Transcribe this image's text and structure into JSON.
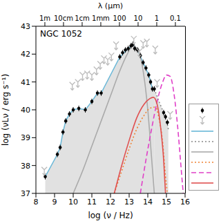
{
  "chart_data": {
    "type": "scatter",
    "title": "NGC 1052",
    "xlabel": "log (ν / Hz)",
    "ylabel": "log (νLν / erg s⁻¹)",
    "x2label": "λ (μm)",
    "xlim": [
      8,
      16
    ],
    "xticks": [
      8,
      9,
      10,
      11,
      12,
      13,
      14,
      15,
      16
    ],
    "ylim": [
      37,
      43
    ],
    "yticks": [
      37,
      38,
      39,
      40,
      41,
      42,
      43
    ],
    "x2lim": [
      8,
      16
    ],
    "x2ticks": [
      {
        "value": 8.48,
        "label": "1m"
      },
      {
        "value": 9.48,
        "label": "10cm"
      },
      {
        "value": 10.48,
        "label": "1cm"
      },
      {
        "value": 11.48,
        "label": "1mm"
      },
      {
        "value": 12.48,
        "label": "100"
      },
      {
        "value": 13.48,
        "label": "10"
      },
      {
        "value": 14.48,
        "label": "1"
      },
      {
        "value": 15.48,
        "label": "0.1"
      }
    ],
    "grid": false,
    "log": false,
    "legend": "right",
    "series": [
      {
        "type": "scatter",
        "color": "#000000",
        "marker": "circle",
        "x": [
          8.5,
          9.15,
          9.3,
          9.45,
          9.6,
          9.8,
          10.0,
          10.3,
          10.65,
          11.0,
          11.3,
          11.5,
          12.5,
          12.65,
          12.8,
          12.95,
          13.1,
          13.2,
          13.3,
          13.45,
          13.6,
          13.75,
          13.9,
          14.05,
          14.15,
          14.25,
          14.35,
          14.85,
          14.95,
          15.05
        ],
        "values": [
          37.6,
          38.4,
          38.65,
          39.2,
          39.6,
          39.85,
          40.0,
          40.05,
          40.0,
          40.3,
          40.6,
          40.6,
          41.9,
          42.05,
          42.15,
          42.2,
          42.3,
          42.35,
          42.2,
          42.15,
          41.95,
          41.7,
          41.5,
          41.25,
          41.0,
          40.75,
          40.75,
          39.9,
          39.75,
          39.55
        ]
      },
      {
        "type": "scatter",
        "color": "#bbbbbb",
        "marker": "down_arrow",
        "x": [
          8.45,
          9.95,
          10.25,
          10.5,
          10.75,
          11.0,
          11.25,
          11.45,
          11.65,
          11.85,
          12.05,
          12.3,
          13.25,
          13.55,
          13.75,
          13.95,
          14.4,
          14.5,
          15.2
        ],
        "values": [
          37.85,
          40.9,
          41.0,
          41.25,
          41.3,
          41.25,
          41.45,
          41.65,
          41.85,
          41.8,
          41.95,
          42.35,
          42.55,
          42.1,
          42.4,
          42.45,
          42.2,
          41.0,
          39.85
        ]
      },
      {
        "type": "area",
        "color": "#6ab8d8",
        "line_style": "solid",
        "x": [
          8.5,
          9.15,
          9.3,
          9.45,
          9.6,
          9.8,
          10.0,
          10.3,
          10.65,
          11.0,
          11.3,
          11.5,
          12.5,
          12.95,
          13.2,
          13.45,
          13.75,
          14.05,
          14.25,
          14.35
        ],
        "values": [
          37.6,
          38.4,
          38.65,
          39.2,
          39.6,
          39.85,
          40.0,
          40.05,
          40.0,
          40.3,
          40.6,
          40.6,
          41.9,
          42.2,
          42.35,
          42.15,
          41.7,
          41.25,
          40.75,
          40.75
        ]
      },
      {
        "type": "area",
        "color": "#888888",
        "line_style": "dotted",
        "x": [
          14.35,
          14.6,
          14.85,
          15.05,
          15.1
        ],
        "values": [
          40.75,
          40.3,
          39.9,
          39.5,
          39.3
        ]
      },
      {
        "type": "line",
        "color": "#aaaaaa",
        "line_style": "solid",
        "x": [
          10.0,
          10.5,
          11.0,
          11.5,
          12.0,
          12.5,
          12.9,
          13.2,
          13.5,
          13.75,
          14.0,
          14.2,
          14.35
        ],
        "values": [
          37.0,
          37.8,
          38.7,
          39.6,
          40.5,
          41.4,
          42.0,
          42.3,
          42.1,
          41.4,
          40.0,
          38.3,
          37.0
        ]
      },
      {
        "type": "line",
        "color": "#f08030",
        "line_style": "dotted",
        "x": [
          12.2,
          12.6,
          13.0,
          13.4,
          13.8,
          14.1,
          14.4,
          14.6,
          14.8,
          14.95,
          15.05
        ],
        "values": [
          37.0,
          37.8,
          38.6,
          39.3,
          39.8,
          40.05,
          40.1,
          39.7,
          38.8,
          37.6,
          37.0
        ]
      },
      {
        "type": "line",
        "color": "#e040c8",
        "line_style": "dashed",
        "x": [
          13.6,
          13.9,
          14.2,
          14.5,
          14.8,
          15.0,
          15.2,
          15.4,
          15.6,
          15.8,
          15.9
        ],
        "values": [
          37.0,
          38.2,
          39.3,
          40.3,
          41.0,
          41.25,
          41.2,
          40.6,
          39.4,
          37.8,
          37.0
        ]
      },
      {
        "type": "line",
        "color": "#e05050",
        "line_style": "solid",
        "x": [
          12.2,
          12.6,
          13.0,
          13.4,
          13.8,
          14.1,
          14.3,
          14.5,
          14.7,
          14.85,
          14.95
        ],
        "values": [
          37.0,
          38.0,
          38.9,
          39.7,
          40.2,
          40.4,
          40.45,
          40.2,
          39.3,
          38.2,
          37.0
        ]
      }
    ]
  }
}
